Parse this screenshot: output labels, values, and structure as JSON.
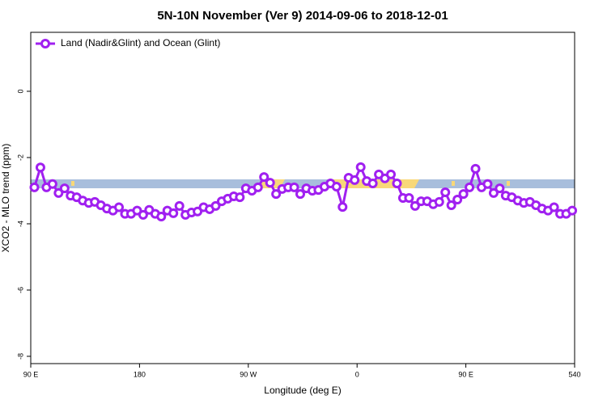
{
  "chart_data": {
    "type": "line",
    "title": "5N-10N November (Ver 9)   2014-09-06 to 2018-12-01",
    "x_label": "Longitude (deg E)",
    "y_label": "XCO2 - MLO trend (ppm)",
    "xlim": [
      90,
      540
    ],
    "ylim": [
      -8.22,
      1.78
    ],
    "xticks": [
      {
        "value": 90,
        "label": "90 E"
      },
      180,
      {
        "value": 270,
        "label": "90 W"
      },
      {
        "value": 360,
        "label": "0"
      },
      {
        "value": 450,
        "label": "90 E"
      },
      540
    ],
    "yticks": [
      0,
      -2,
      -4,
      -6,
      -8
    ],
    "legend": "top-left",
    "x": [
      93,
      98,
      103,
      108,
      113,
      118,
      123,
      128,
      133,
      138,
      143,
      148,
      153,
      158,
      163,
      168,
      173,
      178,
      183,
      188,
      193,
      198,
      203,
      208,
      213,
      218,
      223,
      228,
      233,
      238,
      243,
      248,
      253,
      258,
      263,
      268,
      273,
      278,
      283,
      288,
      293,
      298,
      303,
      308,
      313,
      318,
      323,
      328,
      333,
      338,
      343,
      348,
      353,
      358,
      363,
      368,
      373,
      378,
      383,
      388,
      393,
      398,
      403,
      408,
      413,
      418,
      423,
      428,
      433,
      438,
      443,
      448,
      453,
      458,
      463,
      468,
      473,
      478,
      483,
      488,
      493,
      498,
      503,
      508,
      513,
      518,
      523,
      528,
      533,
      538
    ],
    "series": [
      {
        "name": "Land (Nadir&Glint) and Ocean (Glint)",
        "color": "#a020f0",
        "values": [
          -2.9,
          -2.3,
          -2.9,
          -2.8,
          -3.07,
          -2.93,
          -3.15,
          -3.2,
          -3.3,
          -3.37,
          -3.34,
          -3.44,
          -3.54,
          -3.6,
          -3.5,
          -3.7,
          -3.7,
          -3.6,
          -3.73,
          -3.58,
          -3.7,
          -3.78,
          -3.6,
          -3.68,
          -3.46,
          -3.73,
          -3.66,
          -3.63,
          -3.5,
          -3.56,
          -3.46,
          -3.32,
          -3.24,
          -3.17,
          -3.2,
          -2.93,
          -3.0,
          -2.9,
          -2.59,
          -2.76,
          -3.1,
          -2.95,
          -2.9,
          -2.9,
          -3.1,
          -2.93,
          -3.0,
          -2.98,
          -2.88,
          -2.78,
          -2.88,
          -3.49,
          -2.61,
          -2.68,
          -2.29,
          -2.71,
          -2.78,
          -2.51,
          -2.63,
          -2.51,
          -2.78,
          -3.22,
          -3.22,
          -3.46,
          -3.32,
          -3.32,
          -3.41,
          -3.34,
          -3.05,
          -3.44,
          -3.27,
          -3.1,
          -2.9,
          -2.34,
          -2.9,
          -2.8,
          -3.07,
          -2.93,
          -3.15,
          -3.2,
          -3.3,
          -3.37,
          -3.34,
          -3.44,
          -3.54,
          -3.6,
          -3.5,
          -3.7,
          -3.7,
          -3.6
        ]
      }
    ]
  }
}
